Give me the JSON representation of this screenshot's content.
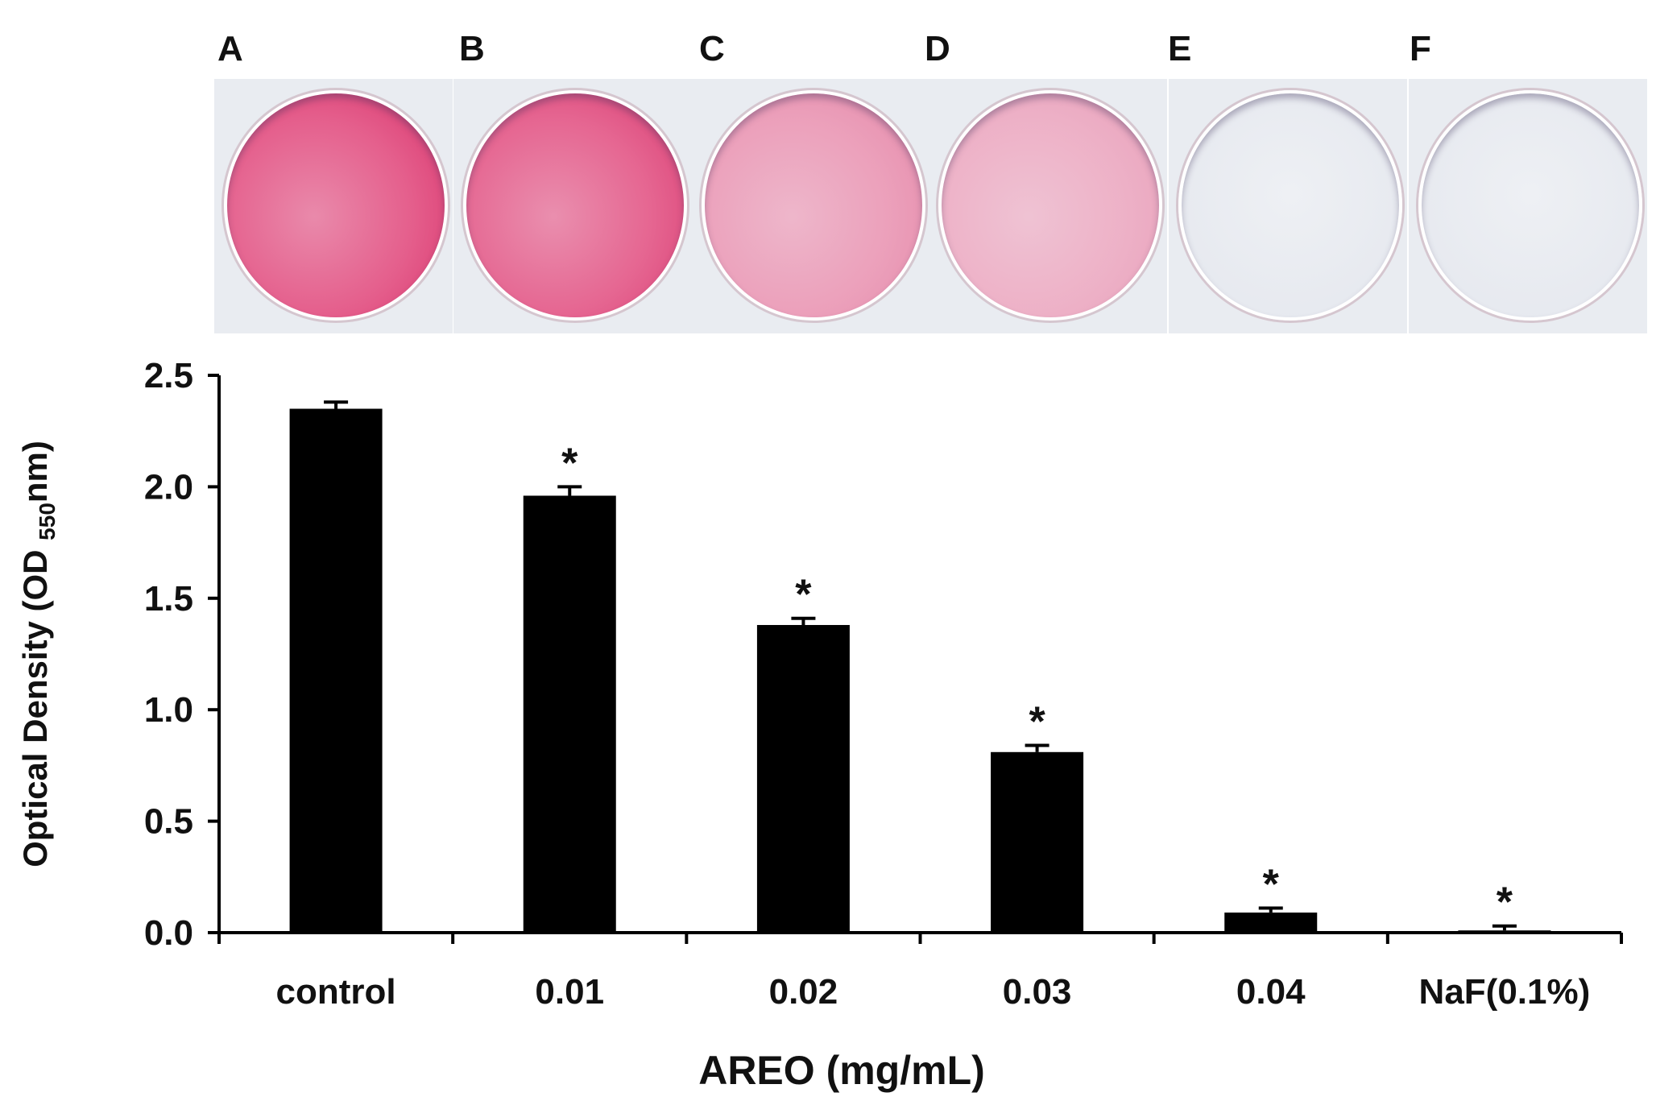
{
  "plates": [
    {
      "label": "A",
      "stain": 0.95
    },
    {
      "label": "B",
      "stain": 0.9
    },
    {
      "label": "C",
      "stain": 0.5
    },
    {
      "label": "D",
      "stain": 0.38
    },
    {
      "label": "E",
      "stain": 0.0
    },
    {
      "label": "F",
      "stain": 0.0
    }
  ],
  "colors": {
    "bar": "#000000",
    "stain": "#e0336d",
    "plate_bg": "#e9ecf1"
  },
  "chart_data": {
    "type": "bar",
    "categories": [
      "control",
      "0.01",
      "0.02",
      "0.03",
      "0.04",
      "NaF(0.1%)"
    ],
    "values": [
      2.35,
      1.96,
      1.38,
      0.81,
      0.09,
      0.01
    ],
    "errors": [
      0.03,
      0.04,
      0.03,
      0.03,
      0.02,
      0.02
    ],
    "significance": [
      "",
      "*",
      "*",
      "*",
      "*",
      "*"
    ],
    "xlabel": "AREO (mg/mL)",
    "ylabel": {
      "prefix": "Optical Density (OD ",
      "subscript": "550",
      "suffix": "nm)"
    },
    "ylim": [
      0,
      2.5
    ],
    "yticks": [
      "0.0",
      "0.5",
      "1.0",
      "1.5",
      "2.0",
      "2.5"
    ],
    "grid": false
  }
}
